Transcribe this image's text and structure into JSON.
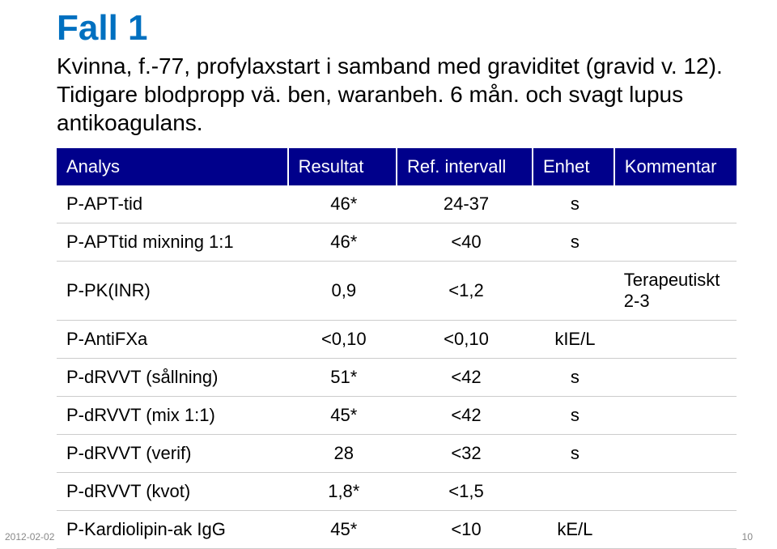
{
  "title": "Fall 1",
  "description": "Kvinna, f.-77, profylaxstart i samband med graviditet (gravid v. 12). Tidigare blodpropp vä. ben, waranbeh. 6 mån. och svagt lupus antikoagulans.",
  "table": {
    "columns": [
      "Analys",
      "Resultat",
      "Ref. intervall",
      "Enhet",
      "Kommentar"
    ],
    "col_widths": [
      "34%",
      "16%",
      "20%",
      "12%",
      "18%"
    ],
    "header_bg": "#000099",
    "header_text_color": "#ffffff",
    "header_fontsize": 22,
    "cell_fontsize": 22,
    "cell_color": "#000000",
    "border_color": "#cccccc",
    "rows": [
      [
        "P-APT-tid",
        "46*",
        "24-37",
        "s",
        ""
      ],
      [
        "P-APTtid mixning 1:1",
        "46*",
        "<40",
        "s",
        ""
      ],
      [
        "P-PK(INR)",
        "0,9",
        "<1,2",
        "",
        "Terapeutiskt 2-3"
      ],
      [
        "P-AntiFXa",
        "<0,10",
        "<0,10",
        "kIE/L",
        ""
      ],
      [
        "P-dRVVT (sållning)",
        "51*",
        "<42",
        "s",
        ""
      ],
      [
        "P-dRVVT (mix 1:1)",
        "45*",
        "<42",
        "s",
        ""
      ],
      [
        "P-dRVVT (verif)",
        "28",
        "<32",
        "s",
        ""
      ],
      [
        "P-dRVVT (kvot)",
        "1,8*",
        "<1,5",
        "",
        ""
      ],
      [
        "P-Kardiolipin-ak IgG",
        "45*",
        "<10",
        "kE/L",
        ""
      ]
    ]
  },
  "footer": {
    "date": "2012-02-02",
    "page": "10"
  },
  "colors": {
    "title": "#0070c0",
    "text": "#000000",
    "background": "#ffffff"
  }
}
